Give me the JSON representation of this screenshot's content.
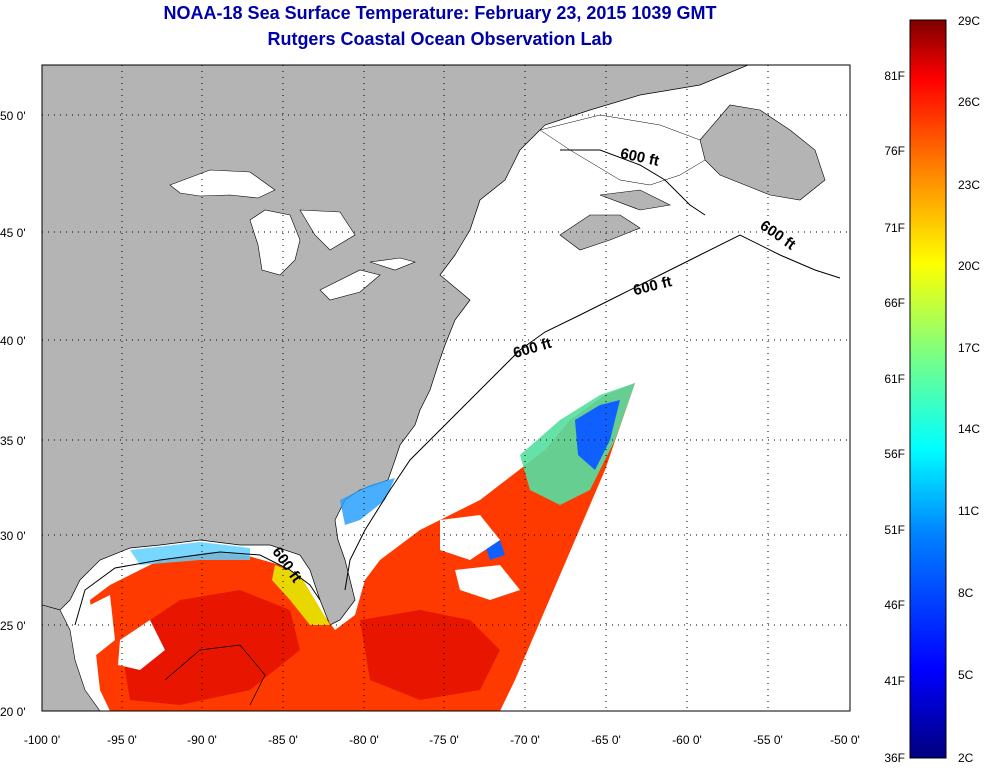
{
  "title": "NOAA-18 Sea Surface Temperature:  February 23, 2015 1039 GMT",
  "subtitle": "Rutgers Coastal Ocean Observation Lab",
  "map": {
    "lat_ticks": [
      "50 0'",
      "45 0'",
      "40 0'",
      "35 0'",
      "30 0'",
      "25 0'",
      "20 0'"
    ],
    "lon_ticks": [
      "-100 0'",
      "-95 0'",
      "-90 0'",
      "-85 0'",
      "-80 0'",
      "-75 0'",
      "-70 0'",
      "-65 0'",
      "-60 0'",
      "-55 0'",
      "-50 0'"
    ],
    "contour_labels": [
      "600 ft",
      "600 ft",
      "600 ft",
      "600 ft",
      "600 ft"
    ],
    "colors": {
      "land": "#b4b4b4",
      "ocean_no_data": "#ffffff",
      "title": "#0000a8"
    }
  },
  "colorbar": {
    "celsius": [
      "29C",
      "26C",
      "23C",
      "20C",
      "17C",
      "14C",
      "11C",
      "8C",
      "5C",
      "2C"
    ],
    "fahrenheit": [
      "81F",
      "76F",
      "71F",
      "66F",
      "61F",
      "56F",
      "51F",
      "46F",
      "41F",
      "36F"
    ],
    "range_c": [
      2,
      29
    ],
    "colors": [
      "#00007f",
      "#0000ff",
      "#007fff",
      "#00ffff",
      "#7fff7f",
      "#ffff00",
      "#ff7f00",
      "#ff0000",
      "#7f0000"
    ]
  }
}
